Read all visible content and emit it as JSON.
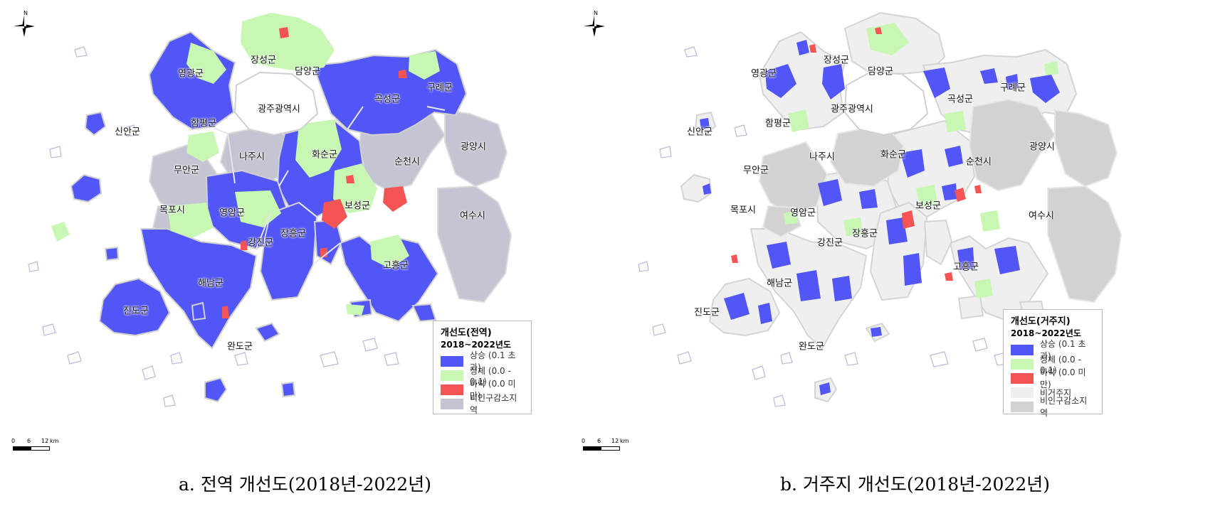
{
  "colors": {
    "increase": "#5356f6",
    "stagnant": "#c8f7b4",
    "decrease": "#f45454",
    "non_residential": "#efefef",
    "non_decline": "#c4c4d2",
    "boundary": "#cfcfcf"
  },
  "icons": {
    "north_arrow": "compass-star-icon"
  },
  "panels": [
    {
      "north_label": "N",
      "scale": {
        "labels": [
          "0",
          "6",
          "12"
        ],
        "unit": "km"
      },
      "labels": {
        "yeonggwang": "영광군",
        "jangseong": "장성군",
        "damyang": "담양군",
        "gurye": "구례군",
        "gokseong": "곡성군",
        "gwangju": "광주광역시",
        "sinan": "신안군",
        "hampyeong": "함평군",
        "naju": "나주시",
        "hwasun": "화순군",
        "suncheon": "순천시",
        "gwangyang": "광양시",
        "muan": "무안군",
        "mokpo": "목포시",
        "yeongam": "영암군",
        "boseong": "보성군",
        "jangheung": "장흥군",
        "gangjin": "강진군",
        "yeosu": "여수시",
        "goheung": "고흥군",
        "haenam": "해남군",
        "jindo": "진도군",
        "wando": "완도군"
      },
      "legend": {
        "title": "개선도(전역)",
        "subtitle": "2018~2022년도",
        "items": [
          {
            "color": "#5356f6",
            "label": "상승 (0.1 초과)"
          },
          {
            "color": "#c8f7b4",
            "label": "정체 (0.0 - 0.1)"
          },
          {
            "color": "#f45454",
            "label": "하락 (0.0 미만)"
          },
          {
            "color": "#c4c4d2",
            "label": "비인구감소지역"
          }
        ]
      },
      "caption": "a. 전역 개선도(2018년-2022년)"
    },
    {
      "north_label": "N",
      "scale": {
        "labels": [
          "0",
          "6",
          "12"
        ],
        "unit": "km"
      },
      "labels": {
        "yeonggwang": "영광군",
        "jangseong": "장성군",
        "damyang": "담양군",
        "gurye": "구례군",
        "gokseong": "곡성군",
        "gwangju": "광주광역시",
        "sinan": "신안군",
        "hampyeong": "함평군",
        "naju": "나주시",
        "hwasun": "화순군",
        "suncheon": "순천시",
        "gwangyang": "광양시",
        "muan": "무안군",
        "mokpo": "목포시",
        "yeongam": "영암군",
        "boseong": "보성군",
        "jangheung": "장흥군",
        "gangjin": "강진군",
        "yeosu": "여수시",
        "goheung": "고흥군",
        "haenam": "해남군",
        "jindo": "진도군",
        "wando": "완도군"
      },
      "legend": {
        "title": "개선도(거주지)",
        "subtitle": "2018~2022년도",
        "items": [
          {
            "color": "#5356f6",
            "label": "상승 (0.1 초과)"
          },
          {
            "color": "#c8f7b4",
            "label": "정체 (0.0 - 0.1)"
          },
          {
            "color": "#f45454",
            "label": "하락 (0.0 미만)"
          },
          {
            "color": "#efefef",
            "label": "비거주지"
          },
          {
            "color": "#d2d2d2",
            "label": "비인구감소지역"
          }
        ]
      },
      "caption": "b. 거주지 개선도(2018년-2022년)"
    }
  ]
}
